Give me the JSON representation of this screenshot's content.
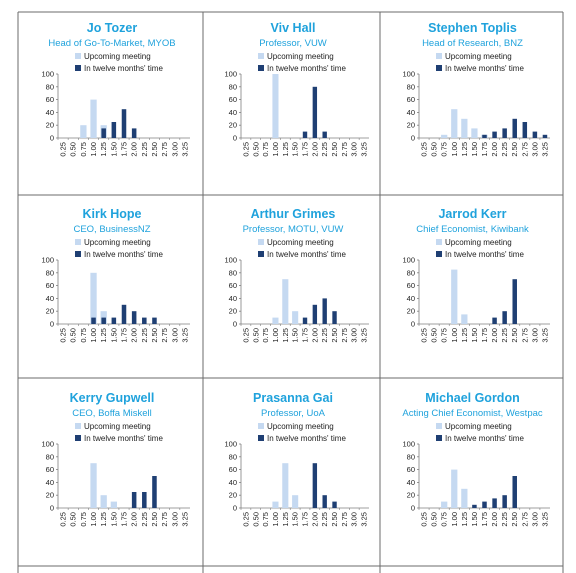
{
  "legend": {
    "upcoming": "Upcoming meeting",
    "twelve": "In twelve months' time"
  },
  "colors": {
    "title": "#1fa2dc",
    "upcoming": "#c5d9f1",
    "twelve": "#1f3f73",
    "border": "#6b6b6b"
  },
  "chart_data": [
    {
      "type": "bar",
      "title": "Jo Tozer",
      "subtitle": "Head of Go-To-Market, MYOB",
      "categories": [
        "0.25",
        "0.50",
        "0.75",
        "1.00",
        "1.25",
        "1.50",
        "1.75",
        "2.00",
        "2.25",
        "2.50",
        "2.75",
        "3.00",
        "3.25"
      ],
      "ylim": [
        0,
        100
      ],
      "yticks": [
        0,
        20,
        40,
        60,
        80,
        100
      ],
      "series": [
        {
          "name": "Upcoming meeting",
          "values": [
            0,
            0,
            20,
            60,
            20,
            0,
            0,
            0,
            0,
            0,
            0,
            0,
            0
          ]
        },
        {
          "name": "In twelve months' time",
          "values": [
            0,
            0,
            0,
            0,
            15,
            25,
            45,
            15,
            0,
            0,
            0,
            0,
            0
          ]
        }
      ]
    },
    {
      "type": "bar",
      "title": "Viv Hall",
      "subtitle": "Professor, VUW",
      "categories": [
        "0.25",
        "0.50",
        "0.75",
        "1.00",
        "1.25",
        "1.50",
        "1.75",
        "2.00",
        "2.25",
        "2.50",
        "2.75",
        "3.00",
        "3.25"
      ],
      "ylim": [
        0,
        100
      ],
      "yticks": [
        0,
        20,
        40,
        60,
        80,
        100
      ],
      "series": [
        {
          "name": "Upcoming meeting",
          "values": [
            0,
            0,
            0,
            100,
            0,
            0,
            0,
            0,
            0,
            0,
            0,
            0,
            0
          ]
        },
        {
          "name": "In twelve months' time",
          "values": [
            0,
            0,
            0,
            0,
            0,
            0,
            10,
            80,
            10,
            0,
            0,
            0,
            0
          ]
        }
      ]
    },
    {
      "type": "bar",
      "title": "Stephen Toplis",
      "subtitle": "Head of Research, BNZ",
      "categories": [
        "0.25",
        "0.50",
        "0.75",
        "1.00",
        "1.25",
        "1.50",
        "1.75",
        "2.00",
        "2.25",
        "2.50",
        "2.75",
        "3.00",
        "3.25"
      ],
      "ylim": [
        0,
        100
      ],
      "yticks": [
        0,
        20,
        40,
        60,
        80,
        100
      ],
      "series": [
        {
          "name": "Upcoming meeting",
          "values": [
            0,
            0,
            5,
            45,
            30,
            15,
            5,
            0,
            0,
            0,
            0,
            0,
            0
          ]
        },
        {
          "name": "In twelve months' time",
          "values": [
            0,
            0,
            0,
            0,
            0,
            0,
            5,
            10,
            15,
            30,
            25,
            10,
            5
          ]
        }
      ]
    },
    {
      "type": "bar",
      "title": "Kirk Hope",
      "subtitle": "CEO, BusinessNZ",
      "categories": [
        "0.25",
        "0.50",
        "0.75",
        "1.00",
        "1.25",
        "1.50",
        "1.75",
        "2.00",
        "2.25",
        "2.50",
        "2.75",
        "3.00",
        "3.25"
      ],
      "ylim": [
        0,
        100
      ],
      "yticks": [
        0,
        20,
        40,
        60,
        80,
        100
      ],
      "series": [
        {
          "name": "Upcoming meeting",
          "values": [
            0,
            0,
            0,
            80,
            20,
            0,
            0,
            0,
            0,
            0,
            0,
            0,
            0
          ]
        },
        {
          "name": "In twelve months' time",
          "values": [
            0,
            0,
            0,
            10,
            10,
            10,
            30,
            20,
            10,
            10,
            0,
            0,
            0
          ]
        }
      ]
    },
    {
      "type": "bar",
      "title": "Arthur Grimes",
      "subtitle": "Professor, MOTU, VUW",
      "categories": [
        "0.25",
        "0.50",
        "0.75",
        "1.00",
        "1.25",
        "1.50",
        "1.75",
        "2.00",
        "2.25",
        "2.50",
        "2.75",
        "3.00",
        "3.25"
      ],
      "ylim": [
        0,
        100
      ],
      "yticks": [
        0,
        20,
        40,
        60,
        80,
        100
      ],
      "series": [
        {
          "name": "Upcoming meeting",
          "values": [
            0,
            0,
            0,
            10,
            70,
            20,
            0,
            0,
            0,
            0,
            0,
            0,
            0
          ]
        },
        {
          "name": "In twelve months' time",
          "values": [
            0,
            0,
            0,
            0,
            0,
            0,
            10,
            30,
            40,
            20,
            0,
            0,
            0
          ]
        }
      ]
    },
    {
      "type": "bar",
      "title": "Jarrod Kerr",
      "subtitle": "Chief Economist, Kiwibank",
      "categories": [
        "0.25",
        "0.50",
        "0.75",
        "1.00",
        "1.25",
        "1.50",
        "1.75",
        "2.00",
        "2.25",
        "2.50",
        "2.75",
        "3.00",
        "3.25"
      ],
      "ylim": [
        0,
        100
      ],
      "yticks": [
        0,
        20,
        40,
        60,
        80,
        100
      ],
      "series": [
        {
          "name": "Upcoming meeting",
          "values": [
            0,
            0,
            0,
            85,
            15,
            0,
            0,
            0,
            0,
            0,
            0,
            0,
            0
          ]
        },
        {
          "name": "In twelve months' time",
          "values": [
            0,
            0,
            0,
            0,
            0,
            0,
            0,
            10,
            20,
            70,
            0,
            0,
            0
          ]
        }
      ]
    },
    {
      "type": "bar",
      "title": "Kerry Gupwell",
      "subtitle": "CEO, Boffa Miskell",
      "categories": [
        "0.25",
        "0.50",
        "0.75",
        "1.00",
        "1.25",
        "1.50",
        "1.75",
        "2.00",
        "2.25",
        "2.50",
        "2.75",
        "3.00",
        "3.25"
      ],
      "ylim": [
        0,
        100
      ],
      "yticks": [
        0,
        20,
        40,
        60,
        80,
        100
      ],
      "series": [
        {
          "name": "Upcoming meeting",
          "values": [
            0,
            0,
            0,
            70,
            20,
            10,
            0,
            0,
            0,
            0,
            0,
            0,
            0
          ]
        },
        {
          "name": "In twelve months' time",
          "values": [
            0,
            0,
            0,
            0,
            0,
            0,
            0,
            25,
            25,
            50,
            0,
            0,
            0
          ]
        }
      ]
    },
    {
      "type": "bar",
      "title": "Prasanna Gai",
      "subtitle": "Professor, UoA",
      "categories": [
        "0.25",
        "0.50",
        "0.75",
        "1.00",
        "1.25",
        "1.50",
        "1.75",
        "2.00",
        "2.25",
        "2.50",
        "2.75",
        "3.00",
        "3.25"
      ],
      "ylim": [
        0,
        100
      ],
      "yticks": [
        0,
        20,
        40,
        60,
        80,
        100
      ],
      "series": [
        {
          "name": "Upcoming meeting",
          "values": [
            0,
            0,
            0,
            10,
            70,
            20,
            0,
            0,
            0,
            0,
            0,
            0,
            0
          ]
        },
        {
          "name": "In twelve months' time",
          "values": [
            0,
            0,
            0,
            0,
            0,
            0,
            0,
            70,
            20,
            10,
            0,
            0,
            0
          ]
        }
      ]
    },
    {
      "type": "bar",
      "title": "Michael Gordon",
      "subtitle": "Acting Chief Economist, Westpac",
      "categories": [
        "0.25",
        "0.50",
        "0.75",
        "1.00",
        "1.25",
        "1.50",
        "1.75",
        "2.00",
        "2.25",
        "2.50",
        "2.75",
        "3.00",
        "3.25"
      ],
      "ylim": [
        0,
        100
      ],
      "yticks": [
        0,
        20,
        40,
        60,
        80,
        100
      ],
      "series": [
        {
          "name": "Upcoming meeting",
          "values": [
            0,
            0,
            10,
            60,
            30,
            0,
            0,
            0,
            0,
            0,
            0,
            0,
            0
          ]
        },
        {
          "name": "In twelve months' time",
          "values": [
            0,
            0,
            0,
            0,
            0,
            5,
            10,
            15,
            20,
            50,
            0,
            0,
            0
          ]
        }
      ]
    }
  ]
}
